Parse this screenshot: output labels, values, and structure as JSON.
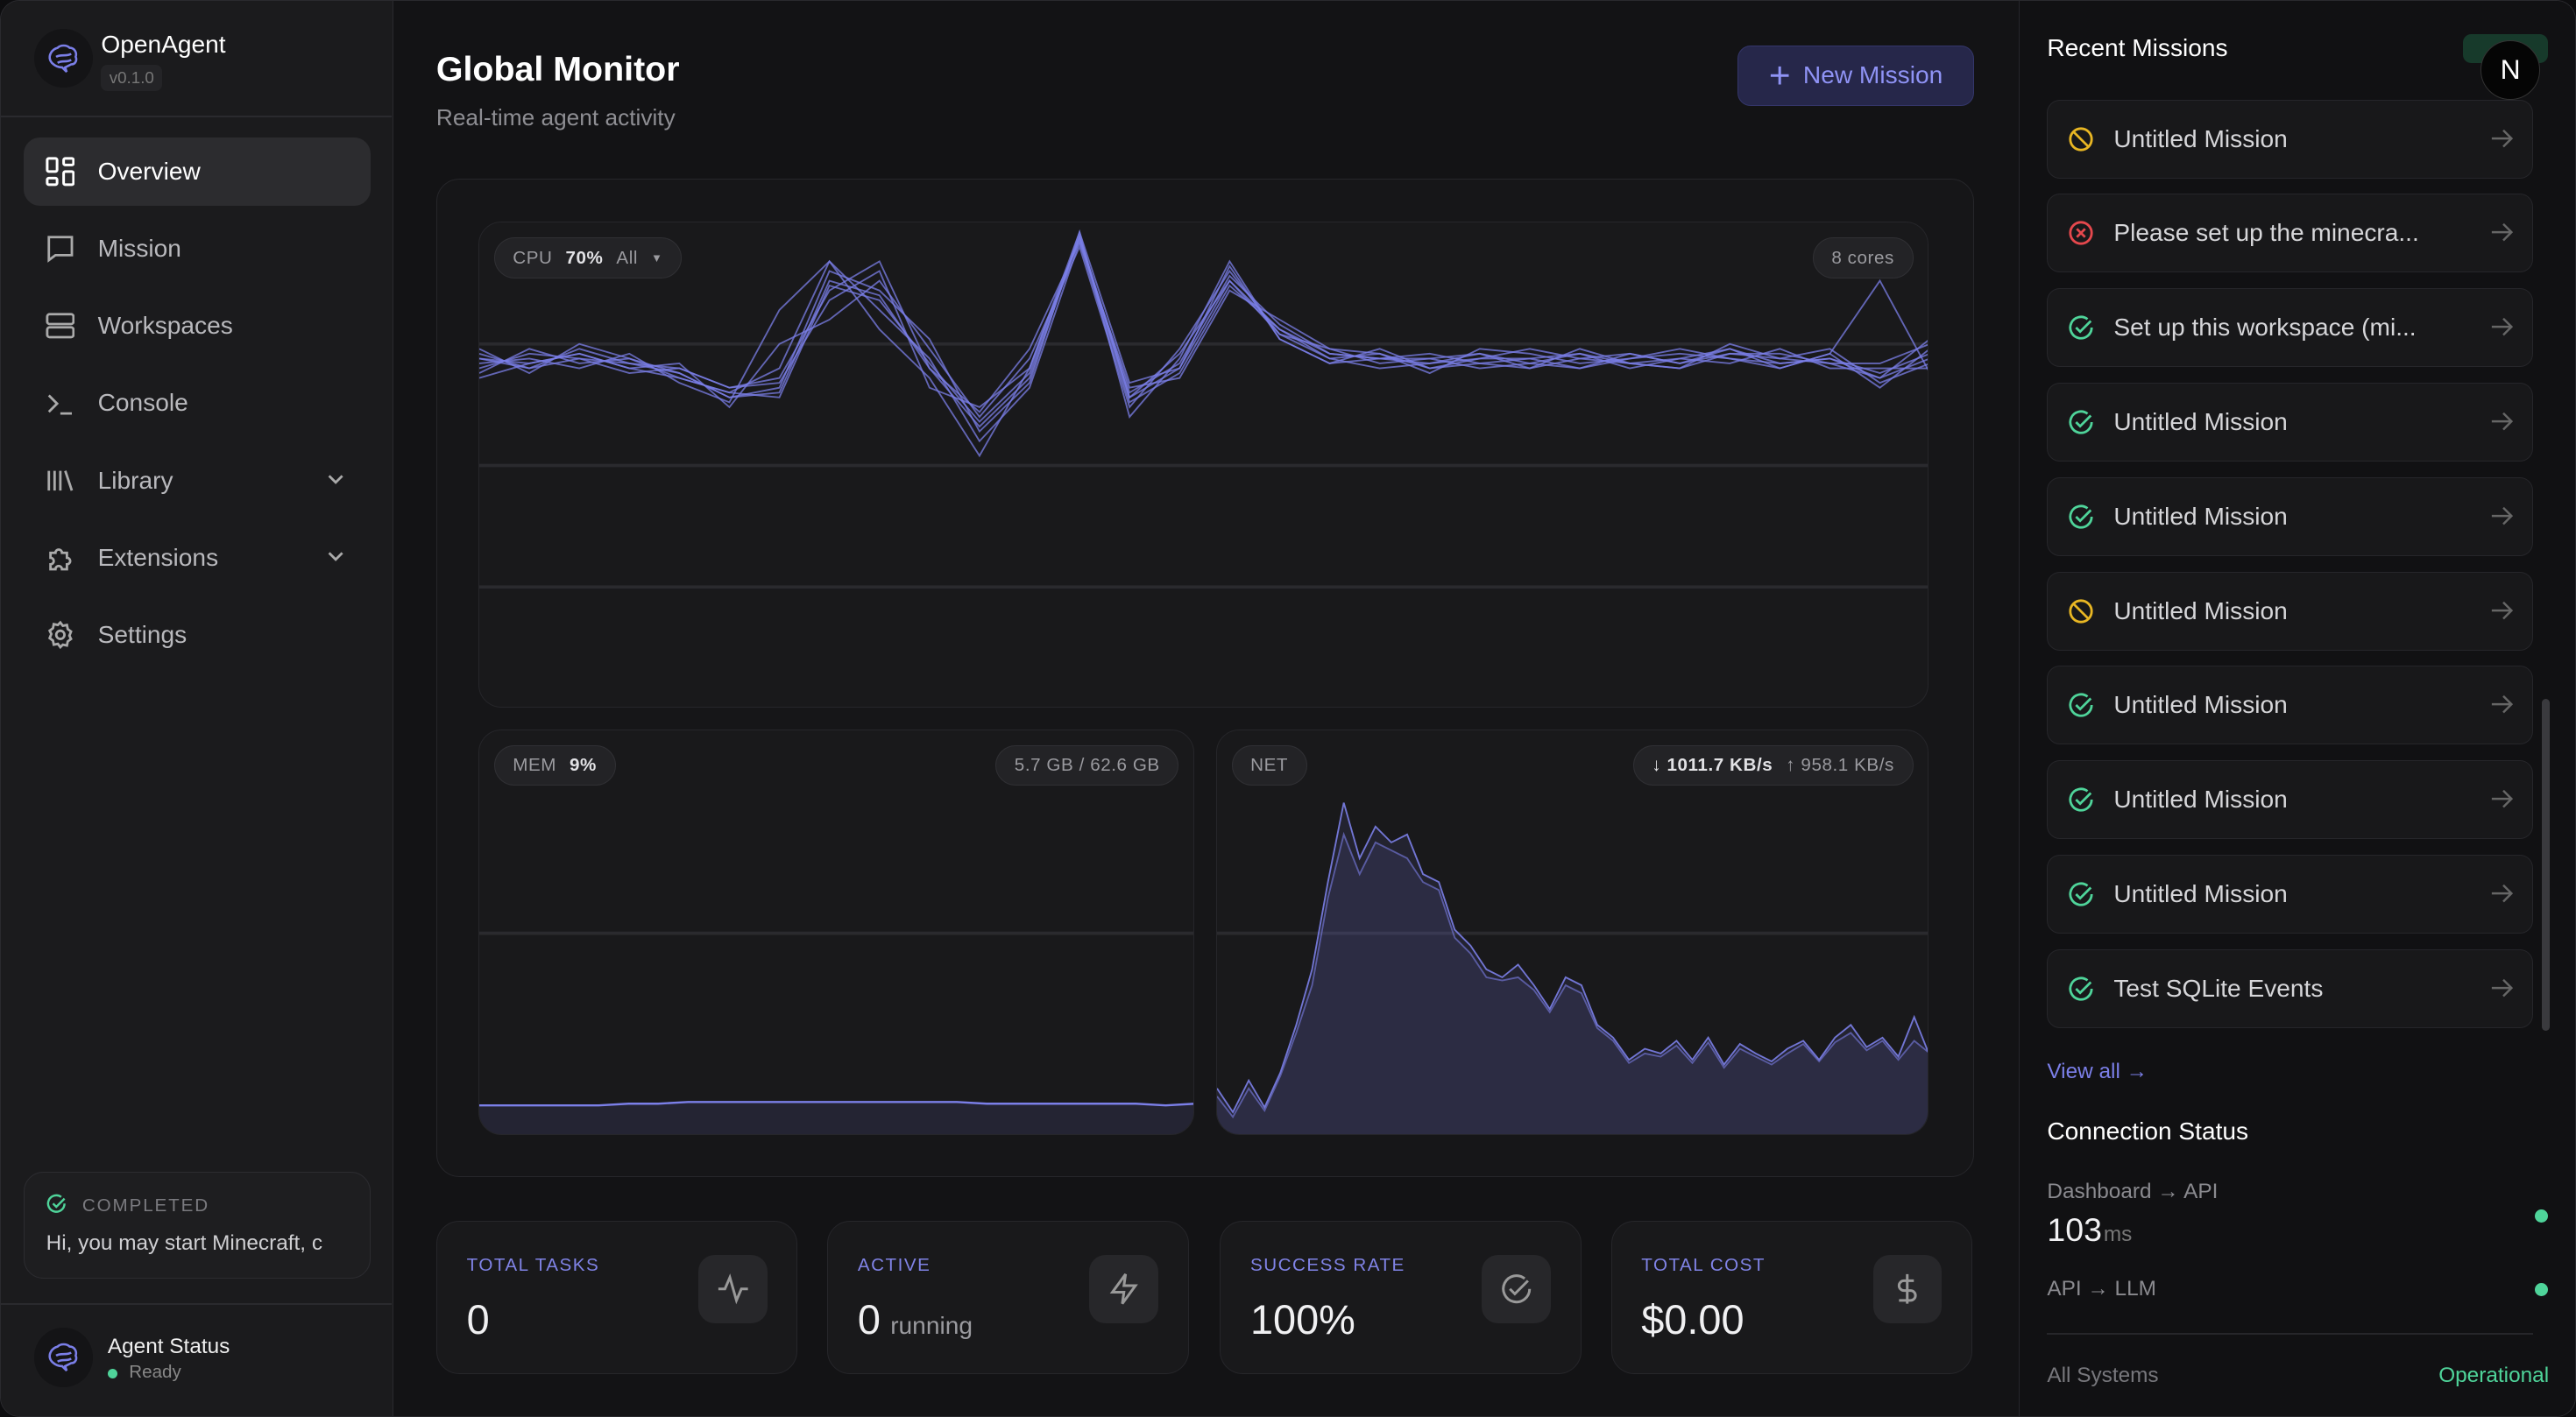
{
  "app": {
    "name": "OpenAgent",
    "version": "v0.1.0"
  },
  "sidebar": {
    "items": [
      {
        "label": "Overview",
        "icon": "grid-icon",
        "active": true
      },
      {
        "label": "Mission",
        "icon": "message-square-icon"
      },
      {
        "label": "Workspaces",
        "icon": "server-icon"
      },
      {
        "label": "Console",
        "icon": "terminal-icon"
      },
      {
        "label": "Library",
        "icon": "library-icon",
        "expandable": true
      },
      {
        "label": "Extensions",
        "icon": "puzzle-icon",
        "expandable": true
      },
      {
        "label": "Settings",
        "icon": "gear-icon"
      }
    ],
    "last_mission": {
      "status": "COMPLETED",
      "text": "Hi, you may start Minecraft, c"
    },
    "agent": {
      "title": "Agent Status",
      "status": "Ready"
    }
  },
  "header": {
    "title": "Global Monitor",
    "subtitle": "Real-time agent activity",
    "new_mission": "New Mission"
  },
  "monitor": {
    "cpu": {
      "label": "CPU",
      "value": "70%",
      "filter": "All",
      "cores": "8 cores"
    },
    "mem": {
      "label": "MEM",
      "value": "9%",
      "usage": "5.7 GB / 62.6 GB"
    },
    "net": {
      "label": "NET",
      "down": "1011.7 KB/s",
      "up": "958.1 KB/s"
    }
  },
  "chart_data": [
    {
      "type": "line",
      "name": "CPU",
      "ylim": [
        0,
        100
      ],
      "grid": true,
      "series": [
        {
          "values": [
            72,
            70,
            74,
            71,
            69,
            64,
            65,
            88,
            85,
            70,
            58,
            68,
            97,
            64,
            70,
            88,
            78,
            73,
            72,
            71,
            73,
            70,
            72,
            71,
            70,
            73,
            72,
            71,
            68,
            72
          ]
        },
        {
          "values": [
            70,
            73,
            72,
            69,
            70,
            66,
            67,
            84,
            90,
            66,
            62,
            70,
            98,
            60,
            72,
            92,
            76,
            71,
            74,
            70,
            72,
            72,
            70,
            73,
            71,
            74,
            70,
            73,
            66,
            74
          ]
        },
        {
          "values": [
            74,
            69,
            75,
            72,
            68,
            65,
            70,
            92,
            82,
            72,
            55,
            66,
            96,
            66,
            68,
            86,
            80,
            74,
            71,
            72,
            70,
            71,
            73,
            70,
            72,
            71,
            74,
            70,
            70,
            70
          ]
        },
        {
          "values": [
            68,
            71,
            73,
            70,
            71,
            62,
            75,
            80,
            88,
            74,
            60,
            72,
            95,
            62,
            74,
            90,
            77,
            72,
            73,
            69,
            74,
            73,
            71,
            72,
            73,
            72,
            71,
            72,
            69,
            73
          ]
        },
        {
          "values": [
            71,
            72,
            70,
            73,
            67,
            63,
            82,
            92,
            78,
            68,
            52,
            70,
            97,
            65,
            71,
            89,
            79,
            73,
            72,
            73,
            71,
            70,
            74,
            71,
            70,
            75,
            72,
            74,
            67,
            71
          ]
        },
        {
          "values": [
            73,
            70,
            72,
            71,
            70,
            66,
            68,
            86,
            92,
            70,
            61,
            74,
            96,
            63,
            69,
            87,
            78,
            72,
            70,
            71,
            72,
            74,
            72,
            73,
            71,
            73,
            73,
            71,
            71,
            75
          ]
        },
        {
          "values": [
            69,
            74,
            71,
            72,
            69,
            64,
            66,
            90,
            86,
            76,
            57,
            67,
            98,
            67,
            70,
            91,
            76,
            71,
            72,
            72,
            73,
            71,
            70,
            72,
            74,
            72,
            70,
            73,
            88,
            69
          ]
        },
        {
          "values": [
            72,
            71,
            73,
            70,
            68,
            65,
            64,
            87,
            84,
            71,
            59,
            69,
            97,
            64,
            73,
            88,
            77,
            74,
            73,
            70,
            71,
            72,
            73,
            71,
            72,
            74,
            71,
            72,
            68,
            76
          ]
        }
      ]
    },
    {
      "type": "area",
      "name": "MEM",
      "ylim": [
        0,
        100
      ],
      "series": [
        {
          "values": [
            9,
            9,
            9,
            9,
            9,
            9.5,
            9.5,
            10,
            10,
            10,
            10,
            10,
            10,
            10,
            10,
            10,
            10,
            9.5,
            9.5,
            9.5,
            9.5,
            9.5,
            9.5,
            9,
            9.5
          ]
        }
      ]
    },
    {
      "type": "area",
      "name": "NET",
      "series": [
        {
          "values": [
            300,
            150,
            350,
            180,
            400,
            700,
            1050,
            1600,
            2100,
            1750,
            1950,
            1850,
            1900,
            1650,
            1600,
            1300,
            1200,
            1050,
            1000,
            1080,
            950,
            800,
            1000,
            950,
            700,
            620,
            480,
            550,
            520,
            600,
            480,
            620,
            450,
            580,
            520,
            470,
            550,
            600,
            480,
            620,
            700,
            560,
            620,
            500,
            750,
            500
          ]
        },
        {
          "values": [
            250,
            120,
            300,
            160,
            380,
            650,
            950,
            1500,
            1900,
            1650,
            1850,
            1800,
            1750,
            1600,
            1550,
            1250,
            1150,
            1000,
            980,
            1000,
            920,
            780,
            950,
            900,
            680,
            600,
            460,
            520,
            500,
            570,
            460,
            590,
            430,
            550,
            500,
            450,
            520,
            580,
            470,
            590,
            650,
            540,
            600,
            480,
            600,
            520
          ]
        }
      ]
    }
  ],
  "stats": [
    {
      "label": "TOTAL TASKS",
      "value": "0",
      "icon": "activity-icon"
    },
    {
      "label": "ACTIVE",
      "value": "0",
      "suffix": "running",
      "icon": "zap-icon"
    },
    {
      "label": "SUCCESS RATE",
      "value": "100%",
      "icon": "check-circle-icon"
    },
    {
      "label": "TOTAL COST",
      "value": "$0.00",
      "icon": "dollar-icon"
    }
  ],
  "recent": {
    "title": "Recent Missions",
    "view_all": "View all →",
    "missions": [
      {
        "title": "Untitled Mission",
        "status": "cancelled"
      },
      {
        "title": "Please set up the minecra...",
        "status": "failed"
      },
      {
        "title": "Set up this workspace (mi...",
        "status": "completed"
      },
      {
        "title": "Untitled Mission",
        "status": "completed"
      },
      {
        "title": "Untitled Mission",
        "status": "completed"
      },
      {
        "title": "Untitled Mission",
        "status": "cancelled"
      },
      {
        "title": "Untitled Mission",
        "status": "completed"
      },
      {
        "title": "Untitled Mission",
        "status": "completed"
      },
      {
        "title": "Untitled Mission",
        "status": "completed"
      },
      {
        "title": "Test SQLite Events",
        "status": "completed"
      }
    ]
  },
  "connection": {
    "title": "Connection Status",
    "dash_api": "Dashboard → API",
    "latency": "103",
    "latency_unit": "ms",
    "api_llm": "API → LLM",
    "all_label": "All Systems",
    "all_value": "Operational"
  },
  "user": {
    "initial": "N"
  },
  "colors": {
    "accent": "#7b7fe8",
    "success": "#4fd49a",
    "warning": "#e8b623",
    "error": "#e5484d"
  }
}
